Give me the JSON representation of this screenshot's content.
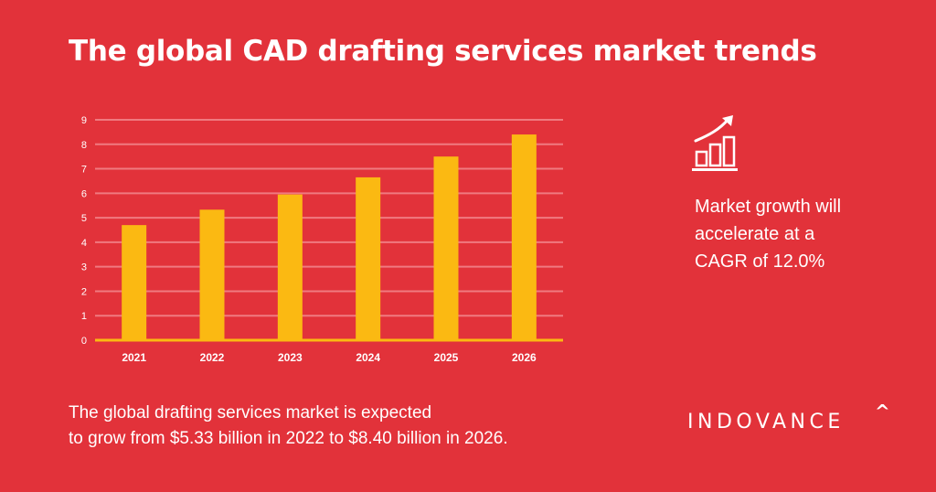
{
  "title": "The global CAD drafting services market trends",
  "chart_data": {
    "type": "bar",
    "categories": [
      "2021",
      "2022",
      "2023",
      "2024",
      "2025",
      "2026"
    ],
    "values": [
      4.7,
      5.33,
      5.95,
      6.65,
      7.5,
      8.4
    ],
    "ylim": [
      0,
      9
    ],
    "yticks": [
      "0",
      "1",
      "2",
      "3",
      "4",
      "5",
      "6",
      "7",
      "8",
      "9"
    ],
    "grid": true,
    "bar_color": "#fbb912",
    "grid_color": "#f07a80"
  },
  "growth": {
    "icon": "growth-chart-icon",
    "lines": [
      "Market growth will",
      "accelerate at a",
      "CAGR of 12.0%"
    ]
  },
  "footnote": {
    "lines": [
      "The global drafting services market is expected",
      "to grow from $5.33 billion in 2022 to $8.40 billion in 2026."
    ]
  },
  "brand": {
    "name": "INDOVANCE",
    "mark": "^"
  },
  "colors": {
    "background": "#e2323a",
    "bars": "#fbb912",
    "text": "#ffffff"
  }
}
